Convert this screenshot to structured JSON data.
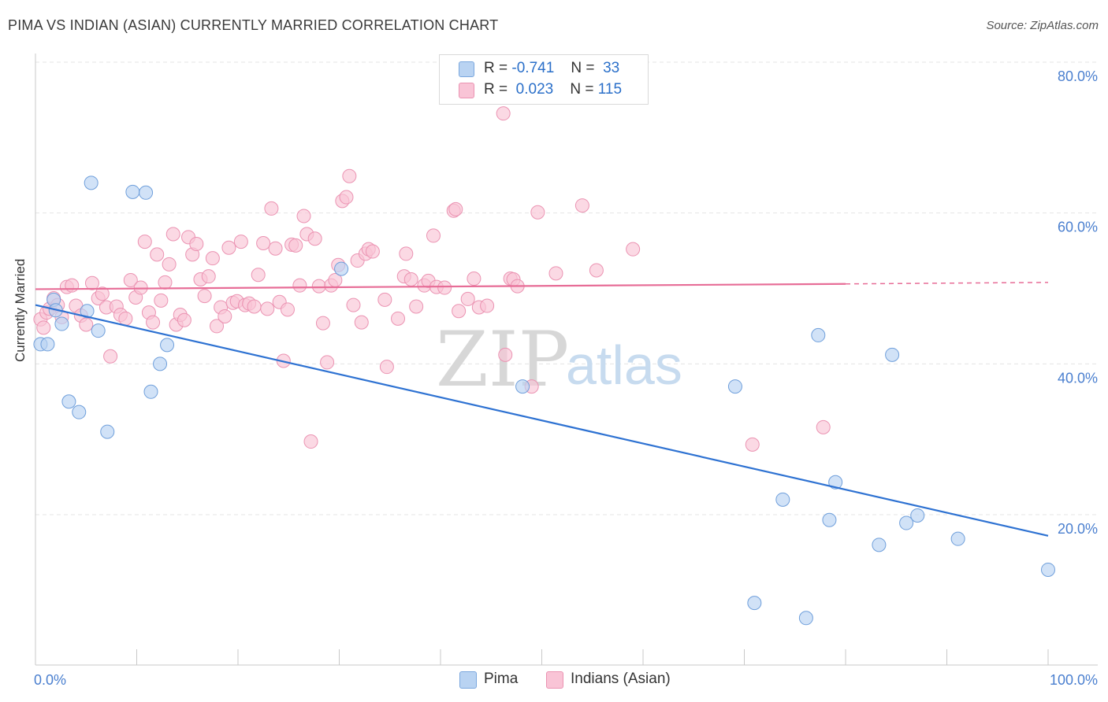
{
  "title": "PIMA VS INDIAN (ASIAN) CURRENTLY MARRIED CORRELATION CHART",
  "source": "Source: ZipAtlas.com",
  "watermark": {
    "zip": "ZIP",
    "atlas": "atlas"
  },
  "legend": {
    "rows": [
      {
        "r_label": "R =",
        "r_value": "-0.741",
        "n_label": "N =",
        "n_value": "33",
        "color": "#b9d3f2",
        "border": "#7aa7de"
      },
      {
        "r_label": "R =",
        "r_value": "0.023",
        "n_label": "N =",
        "n_value": "115",
        "color": "#f9c4d6",
        "border": "#eb93b2"
      }
    ]
  },
  "bottom_legend": [
    {
      "label": "Pima",
      "color": "#b9d3f2",
      "border": "#7aa7de"
    },
    {
      "label": "Indians (Asian)",
      "color": "#f9c4d6",
      "border": "#eb93b2"
    }
  ],
  "chart_data": {
    "type": "scatter",
    "title": "PIMA VS INDIAN (ASIAN) CURRENTLY MARRIED CORRELATION CHART",
    "xlabel": "",
    "ylabel": "Currently Married",
    "xlim": [
      0,
      100
    ],
    "ylim": [
      0,
      83
    ],
    "x_tick_labels": [
      "0.0%",
      "100.0%"
    ],
    "y_ticks": [
      20,
      40,
      60,
      80
    ],
    "y_tick_labels": [
      "20.0%",
      "40.0%",
      "60.0%",
      "80.0%"
    ],
    "grid": true,
    "legend_position": "top-center",
    "series": [
      {
        "name": "Pima",
        "color": "#b9d3f2",
        "stroke": "#6f9fdb",
        "line_color": "#2e72d2",
        "trend": {
          "x": [
            0,
            100
          ],
          "y": [
            47.8,
            17.2
          ]
        },
        "points": [
          [
            0.5,
            42.6
          ],
          [
            1.2,
            42.6
          ],
          [
            1.8,
            48.5
          ],
          [
            2.0,
            47.1
          ],
          [
            2.6,
            45.3
          ],
          [
            3.3,
            35.0
          ],
          [
            4.3,
            33.6
          ],
          [
            5.1,
            47.0
          ],
          [
            5.5,
            64.0
          ],
          [
            6.2,
            44.4
          ],
          [
            7.1,
            31.0
          ],
          [
            9.6,
            62.8
          ],
          [
            10.9,
            62.7
          ],
          [
            11.4,
            36.3
          ],
          [
            12.3,
            40.0
          ],
          [
            13.0,
            42.5
          ],
          [
            30.2,
            52.6
          ],
          [
            48.1,
            37.0
          ],
          [
            69.1,
            37.0
          ],
          [
            71.0,
            8.3
          ],
          [
            73.8,
            22.0
          ],
          [
            76.1,
            6.3
          ],
          [
            77.3,
            43.8
          ],
          [
            78.4,
            19.3
          ],
          [
            79.0,
            24.3
          ],
          [
            83.3,
            16.0
          ],
          [
            84.6,
            41.2
          ],
          [
            86.0,
            18.9
          ],
          [
            87.1,
            19.9
          ],
          [
            91.1,
            16.8
          ],
          [
            100.0,
            12.7
          ]
        ]
      },
      {
        "name": "Indians (Asian)",
        "color": "#f9c4d6",
        "stroke": "#eb93b2",
        "line_color": "#e76d97",
        "trend": {
          "x": [
            0,
            80
          ],
          "y": [
            49.9,
            50.6
          ]
        },
        "trend_dashed": {
          "x": [
            80,
            100
          ],
          "y": [
            50.6,
            50.8
          ]
        },
        "points": [
          [
            0.5,
            45.9
          ],
          [
            0.8,
            44.8
          ],
          [
            1.1,
            46.8
          ],
          [
            1.4,
            47.3
          ],
          [
            1.8,
            48.7
          ],
          [
            2.2,
            47.8
          ],
          [
            2.6,
            46.2
          ],
          [
            3.1,
            50.2
          ],
          [
            3.6,
            50.4
          ],
          [
            4.0,
            47.7
          ],
          [
            4.5,
            46.4
          ],
          [
            5.0,
            45.2
          ],
          [
            5.6,
            50.7
          ],
          [
            6.2,
            48.7
          ],
          [
            6.6,
            49.3
          ],
          [
            7.0,
            47.5
          ],
          [
            7.4,
            41.0
          ],
          [
            8.0,
            47.6
          ],
          [
            8.4,
            46.5
          ],
          [
            8.9,
            46.0
          ],
          [
            9.4,
            51.1
          ],
          [
            9.9,
            48.8
          ],
          [
            10.4,
            50.1
          ],
          [
            10.8,
            56.2
          ],
          [
            11.2,
            46.8
          ],
          [
            11.6,
            45.5
          ],
          [
            12.0,
            54.5
          ],
          [
            12.4,
            48.4
          ],
          [
            12.8,
            50.8
          ],
          [
            13.2,
            53.2
          ],
          [
            13.6,
            57.2
          ],
          [
            13.9,
            45.2
          ],
          [
            14.3,
            46.5
          ],
          [
            14.7,
            45.8
          ],
          [
            15.1,
            56.8
          ],
          [
            15.5,
            54.5
          ],
          [
            15.9,
            55.9
          ],
          [
            16.3,
            51.2
          ],
          [
            16.7,
            49.0
          ],
          [
            17.1,
            51.6
          ],
          [
            17.5,
            54.0
          ],
          [
            17.9,
            45.0
          ],
          [
            18.3,
            47.5
          ],
          [
            18.7,
            46.3
          ],
          [
            19.1,
            55.4
          ],
          [
            19.5,
            48.1
          ],
          [
            19.9,
            48.3
          ],
          [
            20.3,
            56.2
          ],
          [
            20.7,
            47.8
          ],
          [
            21.1,
            48.0
          ],
          [
            21.6,
            47.6
          ],
          [
            22.0,
            51.8
          ],
          [
            22.5,
            56.0
          ],
          [
            22.9,
            47.3
          ],
          [
            23.3,
            60.6
          ],
          [
            23.7,
            55.3
          ],
          [
            24.1,
            48.2
          ],
          [
            24.5,
            40.4
          ],
          [
            24.9,
            47.2
          ],
          [
            25.3,
            55.8
          ],
          [
            25.7,
            55.7
          ],
          [
            26.1,
            50.4
          ],
          [
            26.5,
            59.6
          ],
          [
            26.8,
            57.2
          ],
          [
            27.2,
            29.7
          ],
          [
            27.6,
            56.6
          ],
          [
            28.0,
            50.3
          ],
          [
            28.4,
            45.4
          ],
          [
            28.8,
            40.2
          ],
          [
            29.2,
            50.4
          ],
          [
            29.6,
            51.1
          ],
          [
            29.9,
            53.1
          ],
          [
            30.3,
            61.6
          ],
          [
            30.7,
            62.1
          ],
          [
            31.0,
            64.9
          ],
          [
            31.4,
            47.8
          ],
          [
            31.8,
            53.7
          ],
          [
            32.2,
            45.5
          ],
          [
            32.6,
            54.6
          ],
          [
            32.9,
            55.2
          ],
          [
            33.3,
            54.9
          ],
          [
            34.5,
            48.5
          ],
          [
            34.7,
            39.6
          ],
          [
            35.8,
            46.0
          ],
          [
            36.4,
            51.6
          ],
          [
            36.6,
            54.6
          ],
          [
            37.1,
            51.2
          ],
          [
            37.6,
            47.6
          ],
          [
            38.4,
            50.4
          ],
          [
            38.8,
            51.0
          ],
          [
            39.3,
            57.0
          ],
          [
            39.6,
            50.2
          ],
          [
            40.4,
            50.1
          ],
          [
            41.3,
            60.3
          ],
          [
            41.5,
            60.5
          ],
          [
            41.8,
            47.0
          ],
          [
            42.7,
            48.6
          ],
          [
            43.3,
            51.3
          ],
          [
            43.8,
            47.5
          ],
          [
            44.6,
            47.7
          ],
          [
            46.2,
            73.2
          ],
          [
            46.4,
            41.2
          ],
          [
            46.9,
            51.3
          ],
          [
            47.2,
            51.2
          ],
          [
            47.6,
            50.3
          ],
          [
            49.0,
            37.0
          ],
          [
            49.6,
            60.1
          ],
          [
            51.4,
            52.0
          ],
          [
            54.0,
            61.0
          ],
          [
            55.4,
            52.4
          ],
          [
            59.0,
            55.2
          ],
          [
            70.8,
            29.3
          ],
          [
            77.8,
            31.6
          ]
        ]
      }
    ]
  }
}
